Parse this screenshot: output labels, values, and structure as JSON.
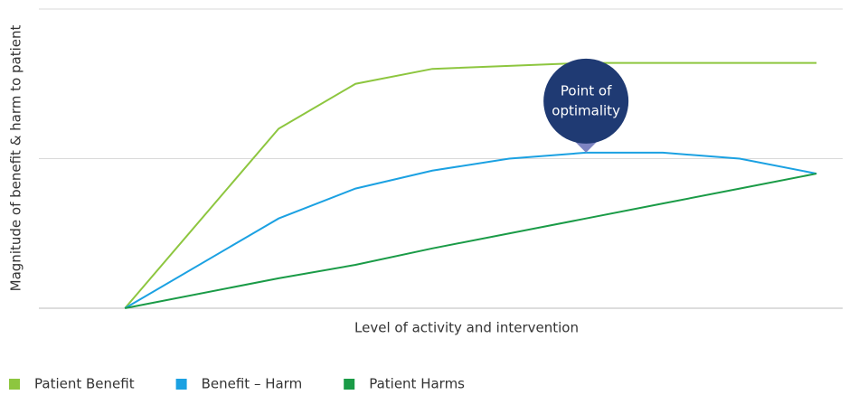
{
  "chart_data": {
    "type": "line",
    "y_label": "Magnitude of benefit & harm to patient",
    "x_label": "Level of activity and intervention",
    "x": [
      0,
      2,
      3,
      4,
      5,
      6,
      7,
      8,
      9
    ],
    "xlim": [
      -1.12,
      9.34
    ],
    "ylim": [
      0,
      100
    ],
    "yticks": [
      0,
      50,
      100
    ],
    "grid": true,
    "legend": "bottom",
    "series": [
      {
        "name": "Patient Benefit",
        "color": "#8dc63f",
        "values": [
          0,
          60,
          75,
          80,
          81,
          82,
          82,
          82,
          82
        ]
      },
      {
        "name": "Benefit – Harm",
        "color": "#1ba1e2",
        "values": [
          0,
          30,
          40,
          46,
          50,
          52,
          52,
          50,
          45
        ]
      },
      {
        "name": "Patient Harms",
        "color": "#1a9b47",
        "values": [
          0,
          10,
          14.5,
          20,
          25,
          30,
          35,
          40,
          45
        ]
      }
    ],
    "annotation": {
      "text": [
        "Point of",
        "optimality"
      ],
      "x": 6,
      "y": 52,
      "color": "#1f3a73"
    }
  }
}
